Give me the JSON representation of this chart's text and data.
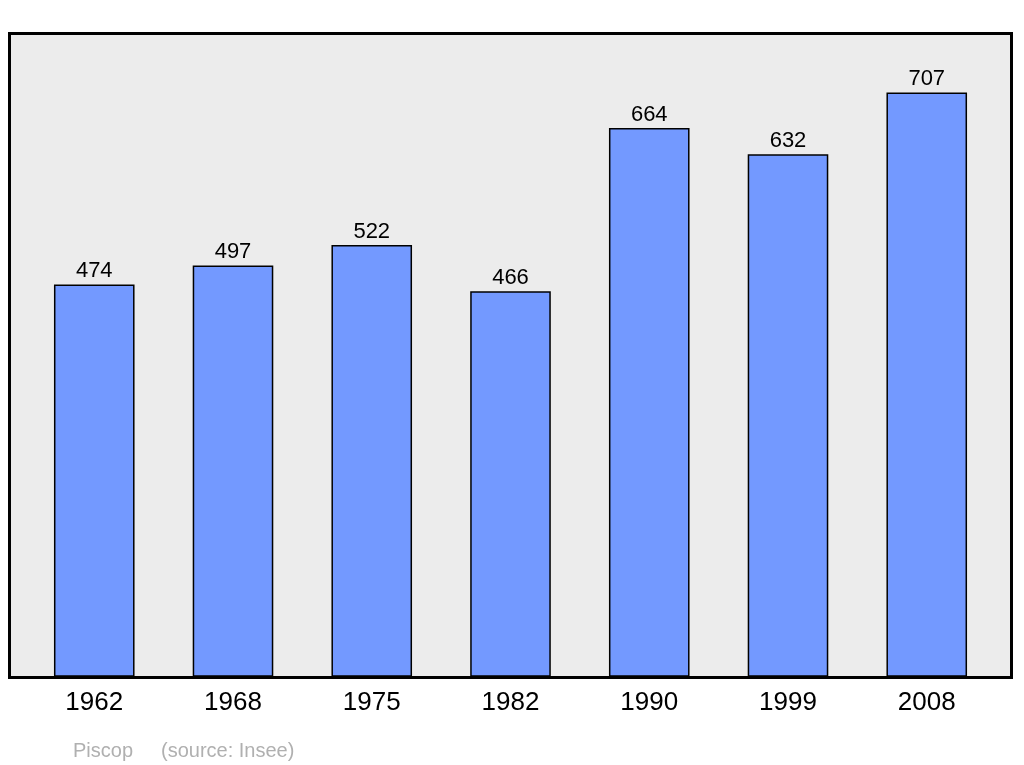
{
  "chart_data": {
    "type": "bar",
    "categories": [
      "1962",
      "1968",
      "1975",
      "1982",
      "1990",
      "1999",
      "2008"
    ],
    "values": [
      474,
      497,
      522,
      466,
      664,
      632,
      707
    ],
    "color": "#7399ff",
    "data_labels": true,
    "grid": false,
    "legend": false,
    "annotations": [
      "Piscop",
      "(source: Insee)"
    ]
  }
}
